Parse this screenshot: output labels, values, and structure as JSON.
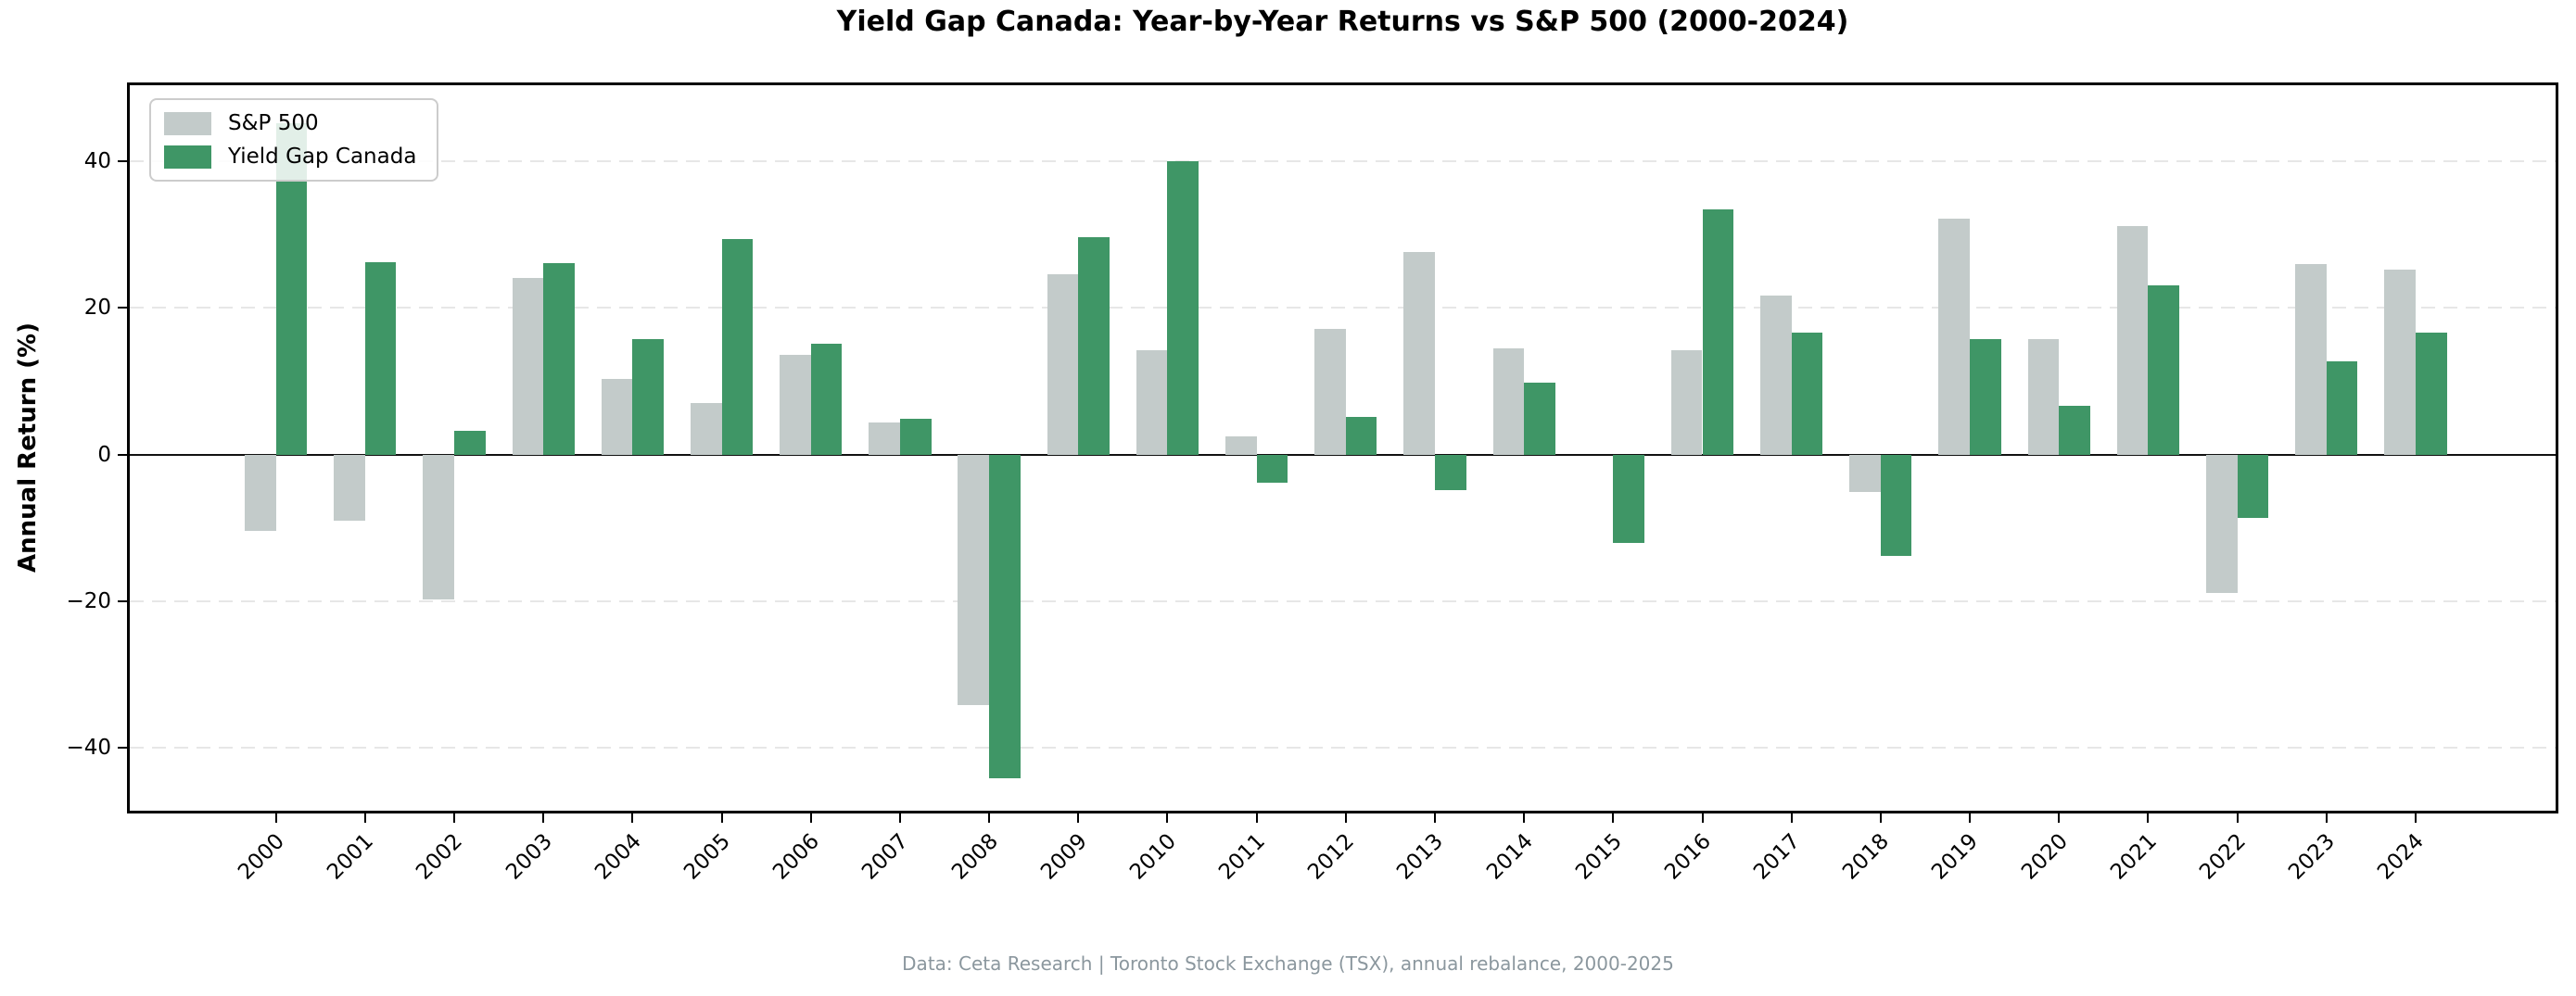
{
  "title": "Yield Gap Canada: Year-by-Year Returns vs S&P 500 (2000-2024)",
  "caption": "Data: Ceta Research | Toronto Stock Exchange (TSX), annual rebalance, 2000-2025",
  "chart_data": {
    "type": "bar",
    "title": "Yield Gap Canada: Year-by-Year Returns vs S&P 500 (2000-2024)",
    "xlabel": "",
    "ylabel": "Annual Return (%)",
    "categories": [
      "2000",
      "2001",
      "2002",
      "2003",
      "2004",
      "2005",
      "2006",
      "2007",
      "2008",
      "2009",
      "2010",
      "2011",
      "2012",
      "2013",
      "2014",
      "2015",
      "2016",
      "2017",
      "2018",
      "2019",
      "2020",
      "2021",
      "2022",
      "2023",
      "2024"
    ],
    "series": [
      {
        "name": "S&P 500",
        "color": "#c3cbca",
        "values": [
          -10.4,
          -9.0,
          -19.8,
          24.1,
          10.3,
          7.0,
          13.6,
          4.4,
          -34.2,
          24.6,
          14.3,
          2.5,
          17.1,
          27.7,
          14.5,
          0,
          14.3,
          21.7,
          -5.1,
          32.2,
          15.7,
          31.2,
          -18.9,
          26.0,
          25.2
        ]
      },
      {
        "name": "Yield Gap Canada",
        "color": "#3f9666",
        "values": [
          45.2,
          26.3,
          3.3,
          26.1,
          15.8,
          29.4,
          15.1,
          4.9,
          -44.2,
          29.7,
          40.0,
          -3.9,
          5.1,
          -4.8,
          9.8,
          -12.0,
          33.5,
          16.7,
          -13.8,
          15.7,
          6.6,
          23.1,
          -8.7,
          12.7,
          16.7
        ]
      }
    ],
    "ylim": [
      -48.6,
      50.4
    ],
    "yticks": [
      {
        "value": -40,
        "label": "−40"
      },
      {
        "value": -20,
        "label": "−20"
      },
      {
        "value": 0,
        "label": "0"
      },
      {
        "value": 20,
        "label": "20"
      },
      {
        "value": 40,
        "label": "40"
      }
    ],
    "grid": "horizontal dashed lines at yticks, solid line at zero",
    "legend_position": "upper left",
    "bar_width_frac": 0.35
  }
}
